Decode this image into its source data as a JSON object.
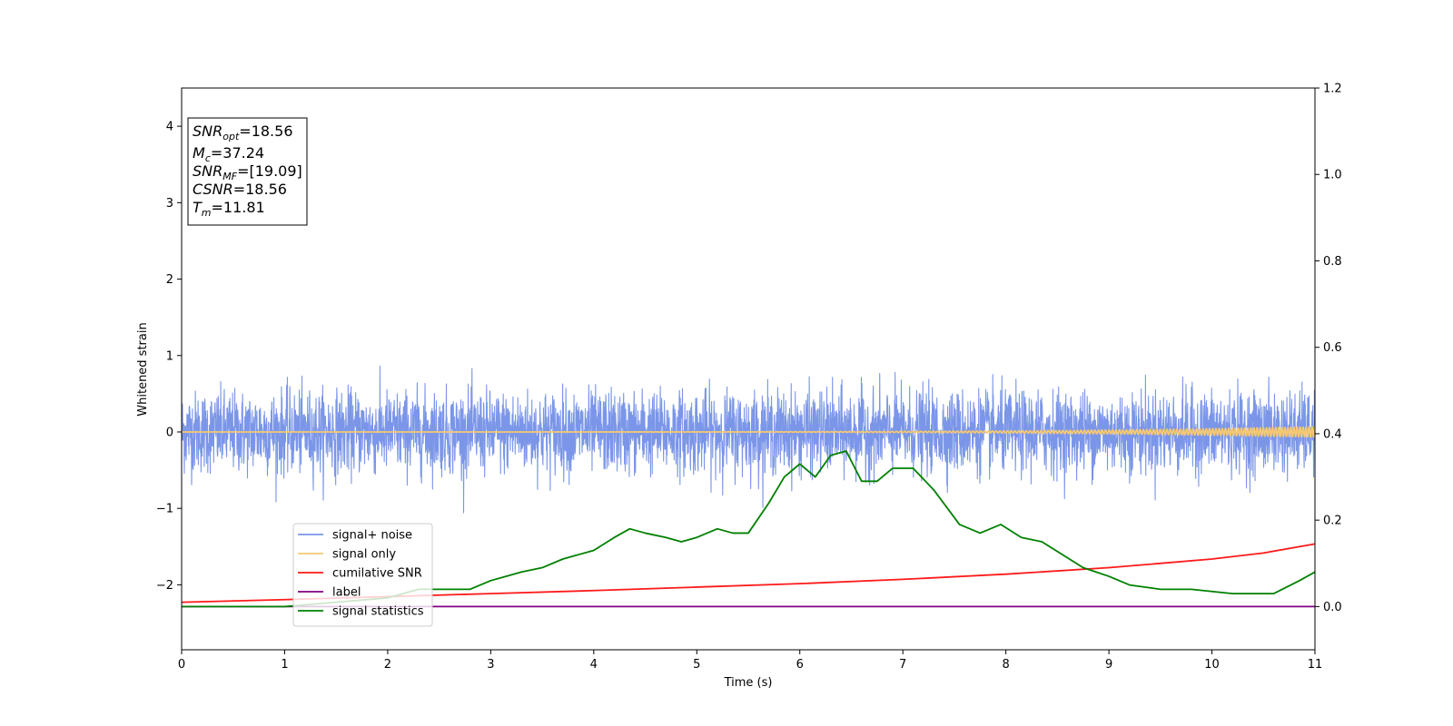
{
  "chart_data": {
    "type": "line",
    "xlabel": "Time (s)",
    "ylabel": "Whitened strain",
    "xlim": [
      0,
      11
    ],
    "ylim_left": [
      -2.85,
      4.5
    ],
    "ylim_right": [
      -0.1,
      1.2
    ],
    "x_ticks": [
      0,
      1,
      2,
      3,
      4,
      5,
      6,
      7,
      8,
      9,
      10,
      11
    ],
    "y_ticks_left": [
      -2,
      -1,
      0,
      1,
      2,
      3,
      4
    ],
    "y_ticks_right": [
      0.0,
      0.2,
      0.4,
      0.6,
      0.8,
      1.0,
      1.2
    ],
    "grid": false,
    "legend_position": "lower-left",
    "annotation": {
      "position": "top-left",
      "lines": [
        {
          "base": "SNR",
          "sub": "opt",
          "value": "=18.56"
        },
        {
          "base": "M",
          "sub": "c",
          "value": "=37.24"
        },
        {
          "base": "SNR",
          "sub": "MF",
          "value": "=[19.09]"
        },
        {
          "base": "CSNR",
          "sub": "",
          "value": "=18.56"
        },
        {
          "base": "T",
          "sub": "m",
          "value": "=11.81"
        }
      ]
    },
    "series": [
      {
        "name": "signal+ noise",
        "axis": "left",
        "color": "#7b96e8",
        "kind": "noise",
        "typical_amplitude": 0.5,
        "max_value": 1.15,
        "min_value": -1.22
      },
      {
        "name": "signal only",
        "axis": "left",
        "color": "#f5c872",
        "kind": "chirp",
        "amplitude_start": 0.0,
        "amplitude_end": 0.07
      },
      {
        "name": "cumilative SNR",
        "axis": "right",
        "color": "#ff1a1a",
        "x": [
          0,
          1,
          2,
          3,
          4,
          5,
          6,
          7,
          8,
          9,
          10,
          10.5,
          11
        ],
        "y": [
          0.01,
          0.016,
          0.023,
          0.03,
          0.037,
          0.045,
          0.053,
          0.063,
          0.075,
          0.09,
          0.11,
          0.124,
          0.145
        ]
      },
      {
        "name": "label",
        "axis": "right",
        "color": "#800080",
        "x": [
          0,
          11
        ],
        "y": [
          0,
          0
        ]
      },
      {
        "name": "signal statistics",
        "axis": "right",
        "color": "#008000",
        "x": [
          0,
          0.5,
          1,
          1.5,
          2,
          2.3,
          2.5,
          2.8,
          3,
          3.3,
          3.5,
          3.7,
          4,
          4.2,
          4.35,
          4.5,
          4.7,
          4.85,
          5,
          5.2,
          5.35,
          5.5,
          5.7,
          5.85,
          6,
          6.15,
          6.3,
          6.45,
          6.6,
          6.75,
          6.9,
          7.1,
          7.3,
          7.55,
          7.75,
          7.95,
          8.15,
          8.35,
          8.55,
          8.75,
          9,
          9.2,
          9.5,
          9.8,
          10.2,
          10.6,
          10.85,
          11
        ],
        "y": [
          0,
          0.0,
          0.0,
          0.01,
          0.02,
          0.04,
          0.04,
          0.04,
          0.06,
          0.08,
          0.09,
          0.11,
          0.13,
          0.16,
          0.18,
          0.17,
          0.16,
          0.15,
          0.16,
          0.18,
          0.17,
          0.17,
          0.24,
          0.3,
          0.33,
          0.3,
          0.35,
          0.36,
          0.29,
          0.29,
          0.32,
          0.32,
          0.27,
          0.19,
          0.17,
          0.19,
          0.16,
          0.15,
          0.12,
          0.09,
          0.07,
          0.05,
          0.04,
          0.04,
          0.03,
          0.03,
          0.06,
          0.08
        ]
      }
    ]
  }
}
